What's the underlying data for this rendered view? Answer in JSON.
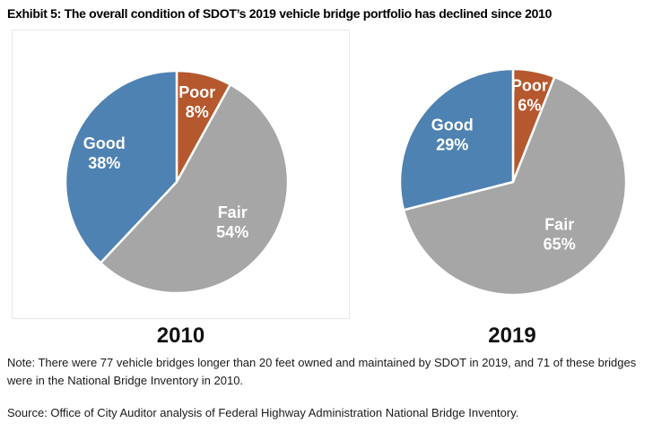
{
  "title": "Exhibit 5: The overall condition of SDOT’s 2019 vehicle bridge portfolio has declined since 2010",
  "note_line": "Note: There were 77 vehicle bridges longer than 20 feet owned and maintained by SDOT in 2019, and 71 of these bridges were in the National Bridge Inventory in 2010.",
  "source_line": "Source: Office of City Auditor analysis of Federal Highway Administration National Bridge Inventory.",
  "colors": {
    "good": "#4E82B2",
    "fair": "#A6A6A6",
    "poor": "#B5582D",
    "separator": "#FFFFFF",
    "frame_border": "#E7E7E7",
    "label_text": "#FFFFFF",
    "title_text": "#000000"
  },
  "chart_data": [
    {
      "type": "pie",
      "title": "2010",
      "unit": "%",
      "start_angle_deg": 0,
      "direction": "clockwise",
      "legend": "none",
      "slices": [
        {
          "label": "Poor",
          "value": 8,
          "color": "#B5582D",
          "label_r": 0.74
        },
        {
          "label": "Fair",
          "value": 54,
          "color": "#A6A6A6",
          "label_r": 0.62
        },
        {
          "label": "Good",
          "value": 38,
          "color": "#4E82B2",
          "label_r": 0.7
        }
      ]
    },
    {
      "type": "pie",
      "title": "2019",
      "unit": "%",
      "start_angle_deg": 0,
      "direction": "clockwise",
      "legend": "none",
      "slices": [
        {
          "label": "Poor",
          "value": 6,
          "color": "#B5582D",
          "label_r": 0.78
        },
        {
          "label": "Fair",
          "value": 65,
          "color": "#A6A6A6",
          "label_r": 0.62
        },
        {
          "label": "Good",
          "value": 29,
          "color": "#4E82B2",
          "label_r": 0.68
        }
      ]
    }
  ]
}
